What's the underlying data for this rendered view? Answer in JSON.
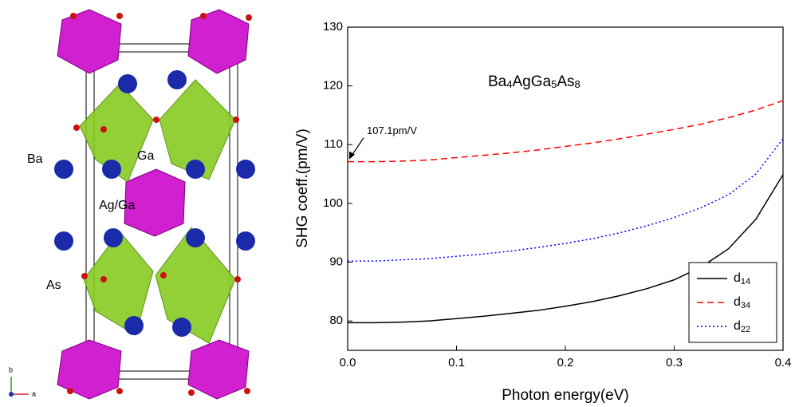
{
  "structure": {
    "labels": [
      "Ba",
      "Ga",
      "Ag/Ga",
      "As"
    ],
    "axes": [
      "b",
      "a"
    ]
  },
  "chart_data": {
    "type": "line",
    "annotation_parts": [
      "Ba",
      "4",
      "AgGa",
      "5",
      "As",
      "8"
    ],
    "arrow_label": "107.1pm/V",
    "xlabel": "Photon energy(eV)",
    "ylabel": "SHG coeff.(pm/V)",
    "xlim": [
      0,
      0.4
    ],
    "ylim": [
      75,
      130
    ],
    "xticks": [
      {
        "value": 0,
        "label": "0.0"
      },
      0.1,
      0.2,
      0.3,
      0.4
    ],
    "yticks": [
      80,
      90,
      100,
      110,
      120,
      130
    ],
    "legend": "lower right",
    "x": [
      0,
      0.025,
      0.05,
      0.075,
      0.1,
      0.125,
      0.15,
      0.175,
      0.2,
      0.225,
      0.25,
      0.275,
      0.3,
      0.325,
      0.35,
      0.375,
      0.4
    ],
    "series": [
      {
        "name": "d14",
        "color": "#000000",
        "dash": "solid",
        "values": [
          79.7,
          79.7,
          79.8,
          80.0,
          80.4,
          80.8,
          81.3,
          81.8,
          82.5,
          83.3,
          84.3,
          85.5,
          87.0,
          89.2,
          92.3,
          97.3,
          104.9
        ]
      },
      {
        "name": "d34",
        "color": "#ff0000",
        "dash": "dashed",
        "values": [
          107.1,
          107.1,
          107.2,
          107.4,
          107.8,
          108.2,
          108.6,
          109.1,
          109.7,
          110.3,
          111.0,
          111.8,
          112.6,
          113.5,
          114.6,
          115.9,
          117.5
        ]
      },
      {
        "name": "d22",
        "color": "#0000ff",
        "dash": "dotted",
        "values": [
          90.2,
          90.2,
          90.4,
          90.6,
          91.0,
          91.4,
          91.9,
          92.5,
          93.2,
          94.0,
          95.0,
          96.2,
          97.6,
          99.3,
          101.5,
          105.0,
          111.0
        ]
      }
    ]
  }
}
